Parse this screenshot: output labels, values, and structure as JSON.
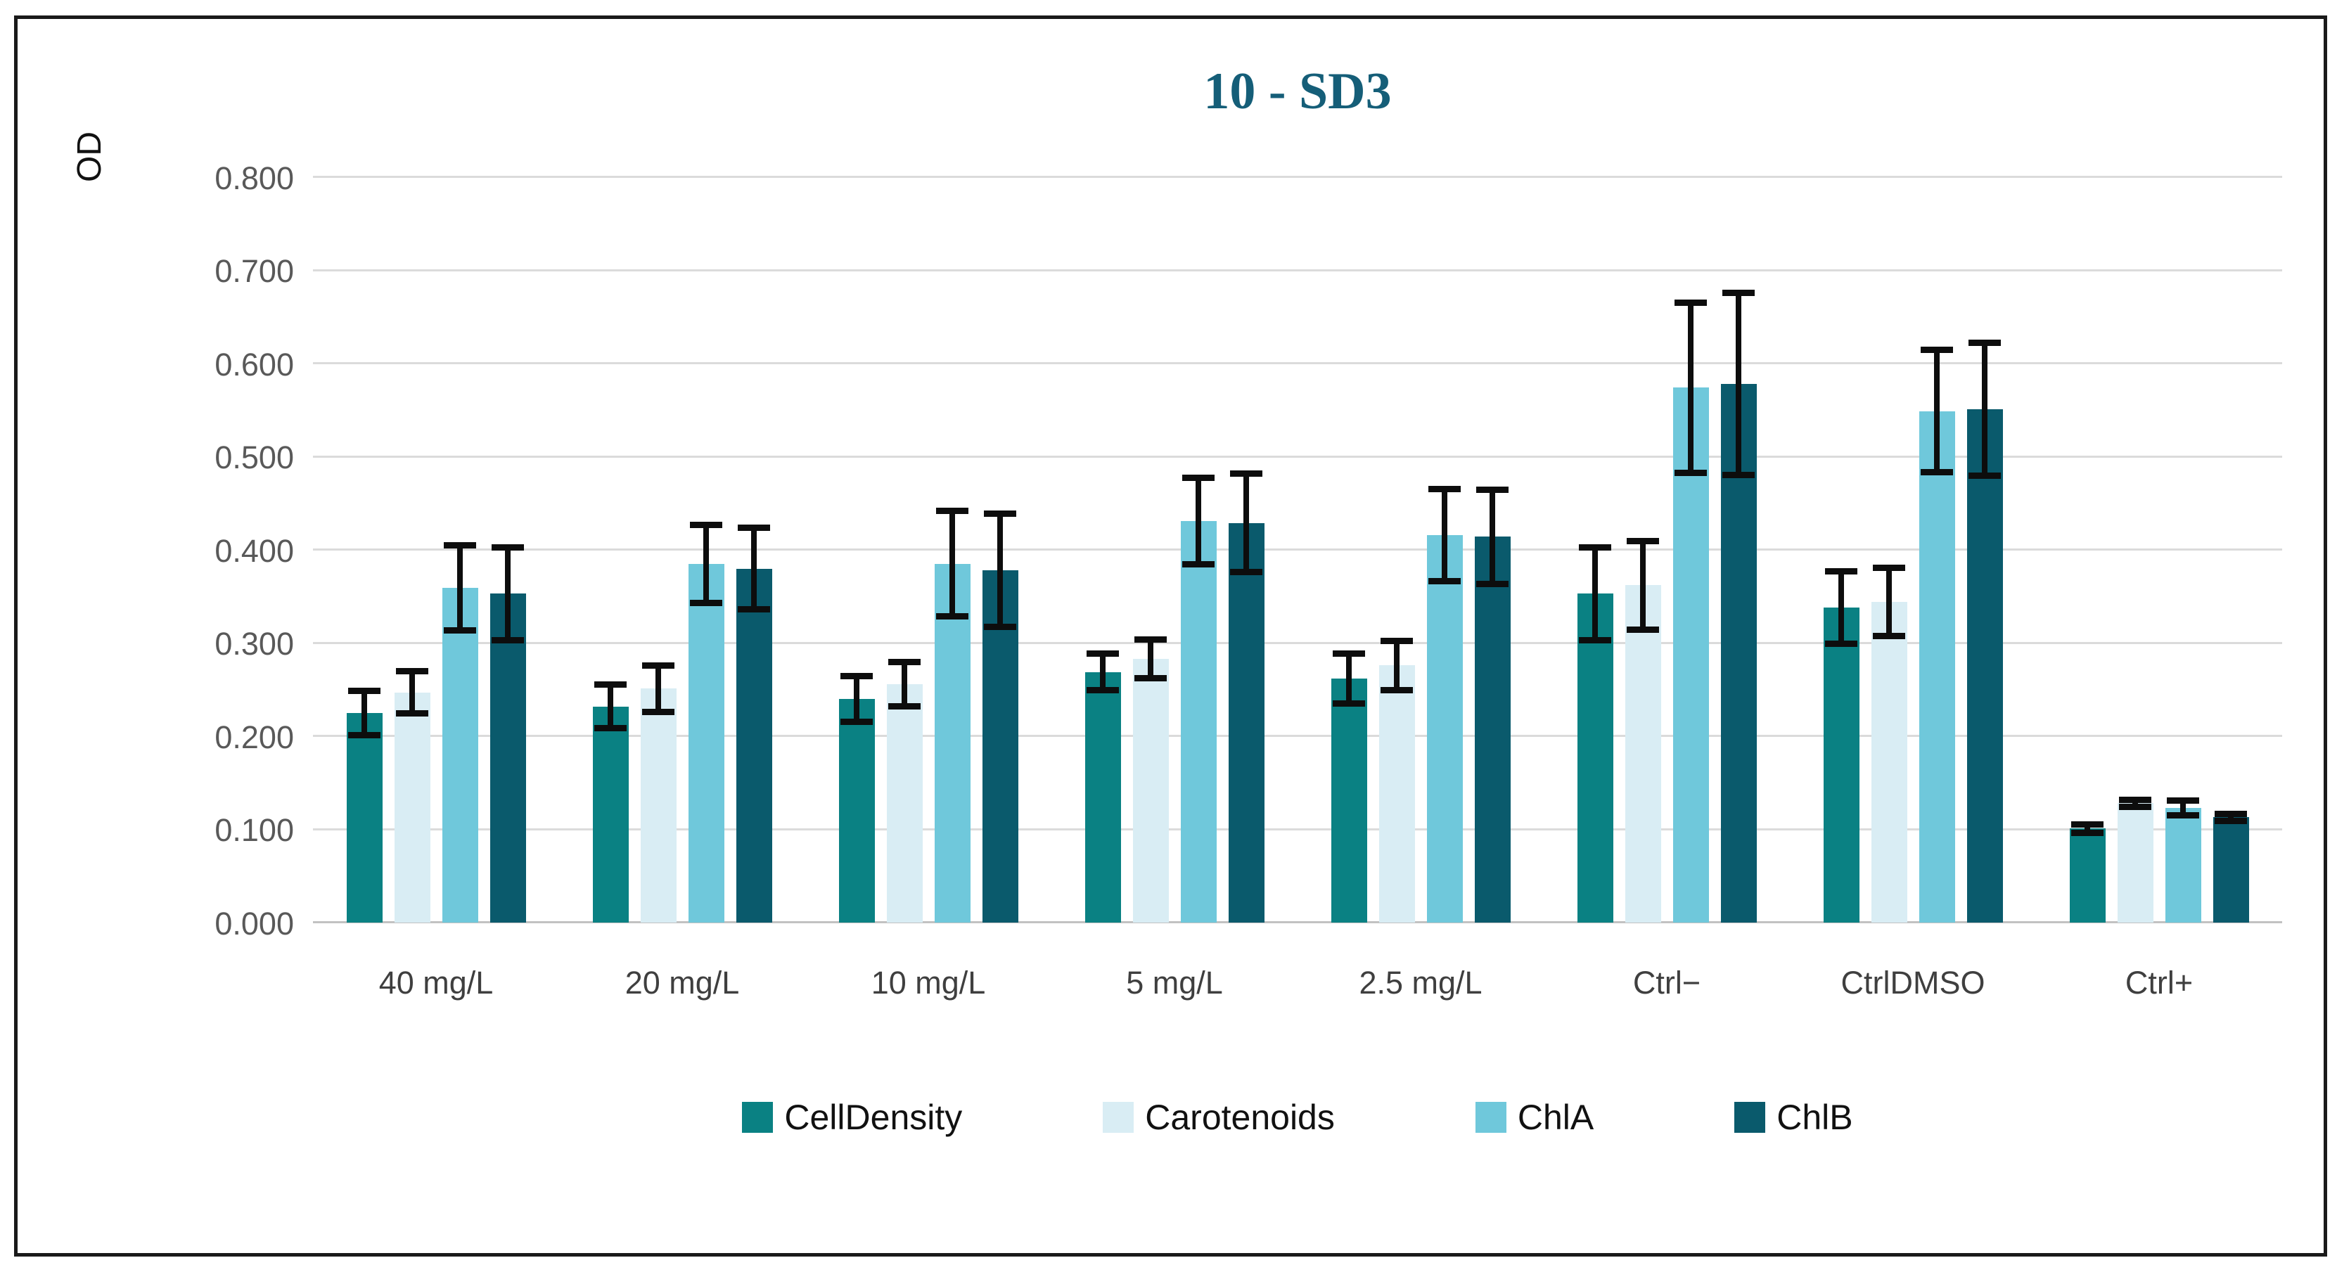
{
  "chart_data": {
    "type": "bar",
    "title": "10 - SD3",
    "ylabel": "OD",
    "xlabel": "",
    "ylim": [
      0,
      0.8
    ],
    "ytick_step": 0.1,
    "ytick_labels": [
      "0.000",
      "0.100",
      "0.200",
      "0.300",
      "0.400",
      "0.500",
      "0.600",
      "0.700",
      "0.800"
    ],
    "grid": true,
    "legend_position": "bottom",
    "categories": [
      "40 mg/L",
      "20 mg/L",
      "10 mg/L",
      "5 mg/L",
      "2.5 mg/L",
      "Ctrl−",
      "CtrlDMSO",
      "Ctrl+"
    ],
    "series": [
      {
        "name": "CellDensity",
        "color": "#0A8183",
        "values": [
          0.225,
          0.232,
          0.24,
          0.269,
          0.262,
          0.353,
          0.338,
          0.101
        ],
        "errors": [
          0.024,
          0.024,
          0.025,
          0.02,
          0.027,
          0.05,
          0.039,
          0.005
        ]
      },
      {
        "name": "Carotenoids",
        "color": "#D9EDF4",
        "values": [
          0.247,
          0.251,
          0.256,
          0.283,
          0.276,
          0.362,
          0.344,
          0.128
        ],
        "errors": [
          0.023,
          0.025,
          0.024,
          0.021,
          0.027,
          0.048,
          0.037,
          0.004
        ]
      },
      {
        "name": "ChlA",
        "color": "#6FC8DB",
        "values": [
          0.359,
          0.385,
          0.385,
          0.431,
          0.416,
          0.574,
          0.549,
          0.123
        ],
        "errors": [
          0.046,
          0.042,
          0.057,
          0.047,
          0.05,
          0.092,
          0.066,
          0.008
        ]
      },
      {
        "name": "ChlB",
        "color": "#0A5A6C",
        "values": [
          0.353,
          0.38,
          0.378,
          0.429,
          0.414,
          0.578,
          0.551,
          0.113
        ],
        "errors": [
          0.05,
          0.044,
          0.061,
          0.053,
          0.051,
          0.098,
          0.072,
          0.004
        ]
      }
    ]
  },
  "colors": {
    "title": "#155E78",
    "gridline": "#DBDBDB",
    "axis_line": "#C2C2C2",
    "error_bar": "#0D0D0D",
    "frame_border": "#1A1A1A",
    "ytick_text": "#595959",
    "xtick_text": "#3F3F3F"
  }
}
